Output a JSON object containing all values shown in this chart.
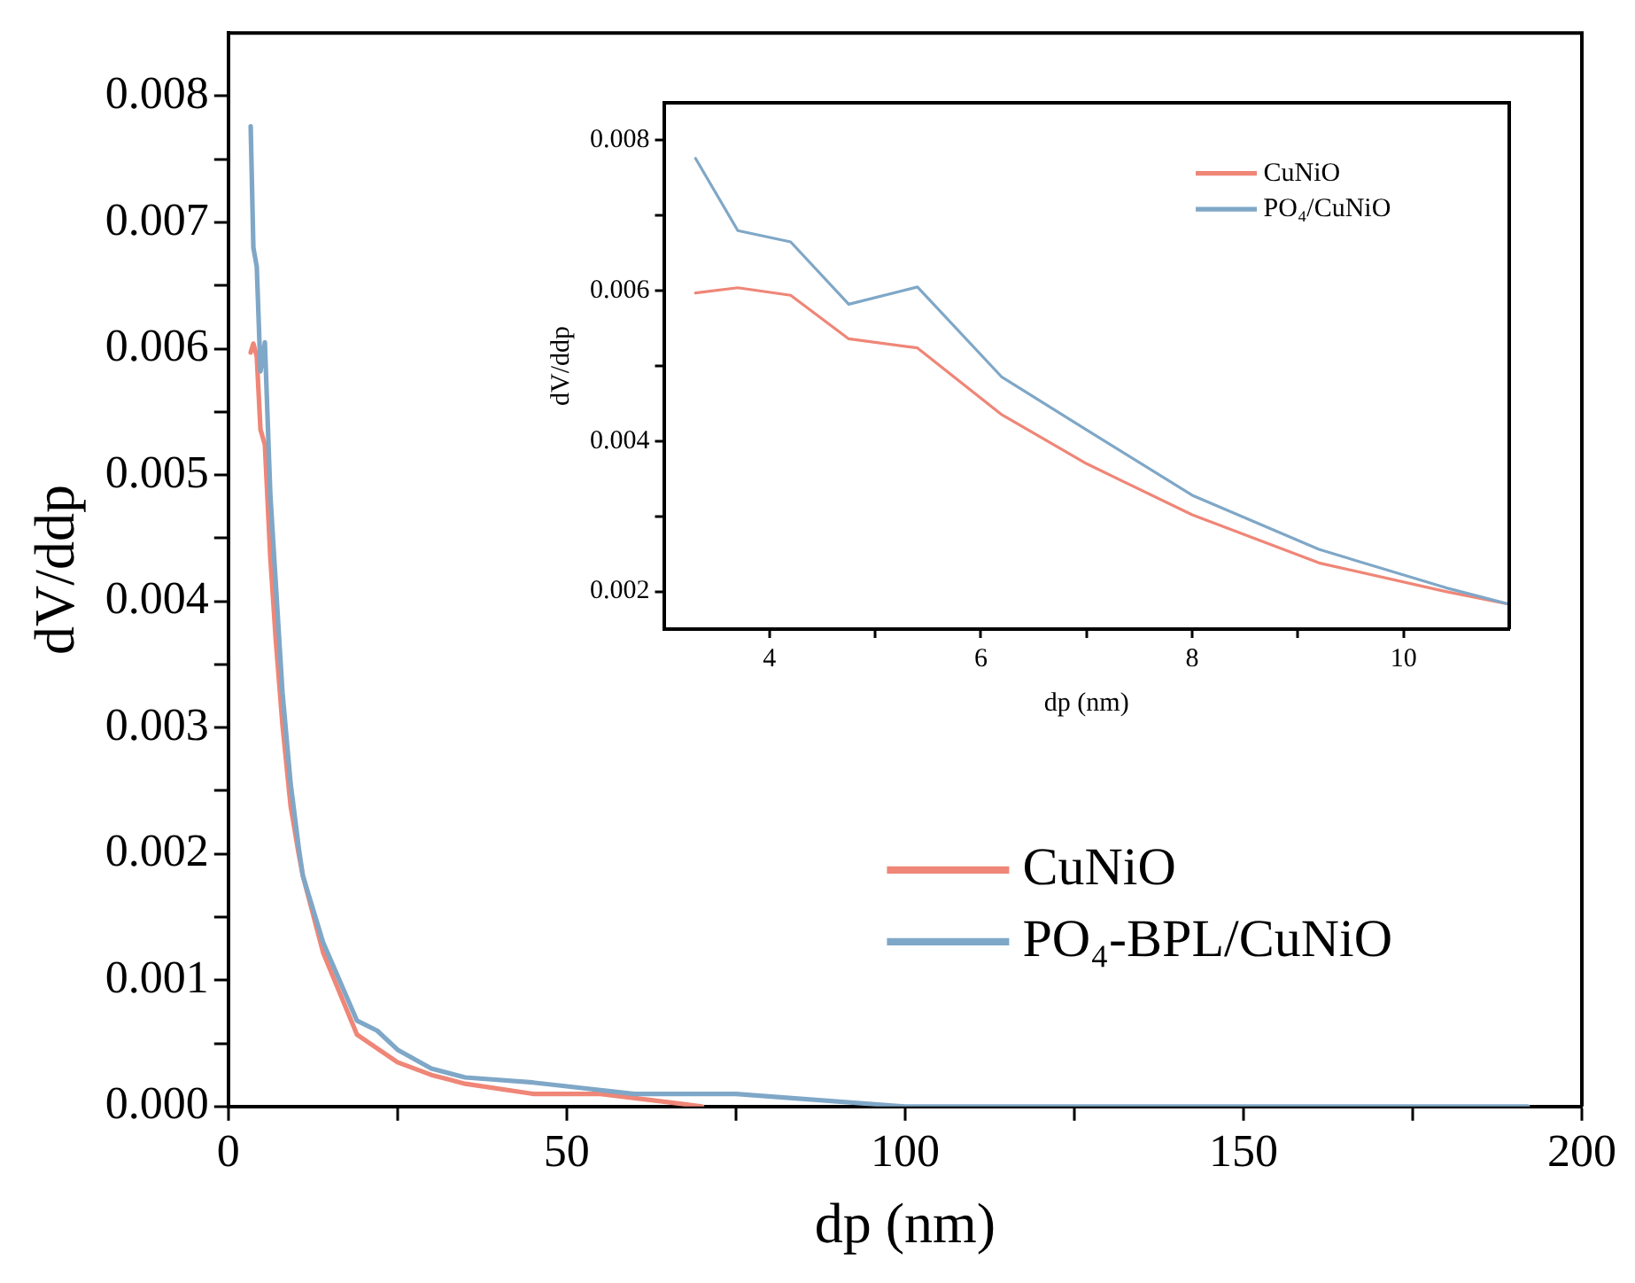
{
  "chart_data": [
    {
      "type": "line",
      "xlabel": "dp (nm)",
      "ylabel": "dV/ddp",
      "xlim": [
        0,
        200
      ],
      "ylim": [
        0,
        0.0085
      ],
      "xticks": [
        0,
        {
          "value": 25,
          "label": null
        },
        50,
        {
          "value": 75,
          "label": null
        },
        100,
        {
          "value": 125,
          "label": null
        },
        150,
        {
          "value": 175,
          "label": null
        },
        200
      ],
      "yticks": [
        {
          "value": 0,
          "label": "0.000"
        },
        {
          "value": 0.0005,
          "label": null
        },
        0.001,
        {
          "value": 0.0015,
          "label": null
        },
        0.002,
        {
          "value": 0.0025,
          "label": null
        },
        0.003,
        {
          "value": 0.0035,
          "label": null
        },
        0.004,
        {
          "value": 0.0045,
          "label": null
        },
        0.005,
        {
          "value": 0.0055,
          "label": null
        },
        0.006,
        {
          "value": 0.0065,
          "label": null
        },
        0.007,
        {
          "value": 0.0075,
          "label": null
        },
        0.008
      ],
      "grid": false,
      "legend": "bottom right",
      "marker": "none",
      "line_style": "solid",
      "series": [
        {
          "name": "CuNiO",
          "color": "#ef8677",
          "x": [
            3.3,
            3.7,
            4.2,
            4.75,
            5.4,
            6.2,
            7,
            8,
            9.2,
            10.4,
            11,
            14,
            19,
            25,
            30,
            35,
            45,
            55,
            70
          ],
          "values": [
            0.00597,
            0.00604,
            0.00594,
            0.00536,
            0.00524,
            0.00435,
            0.0037,
            0.00302,
            0.00238,
            0.002,
            0.00183,
            0.00122,
            0.00057,
            0.00035,
            0.00025,
            0.00018,
            0.0001,
            0.0001,
            0
          ]
        },
        {
          "name": "PO₄-BPL/CuNiO",
          "color": "#7fa7c7",
          "x": [
            3.3,
            3.7,
            4.2,
            4.75,
            5.4,
            6.2,
            7,
            8,
            9.2,
            10.4,
            11,
            14,
            19,
            22,
            25,
            30,
            35,
            45,
            50,
            60,
            75,
            100,
            120,
            192
          ],
          "values": [
            0.00776,
            0.0068,
            0.00665,
            0.00582,
            0.00605,
            0.00485,
            0.00415,
            0.00328,
            0.00256,
            0.00205,
            0.00183,
            0.0013,
            0.00068,
            0.0006,
            0.00045,
            0.0003,
            0.00023,
            0.00019,
            0.00016,
            0.0001,
            0.0001,
            0,
            0,
            0
          ]
        }
      ]
    },
    {
      "type": "line",
      "xlabel": "dp (nm)",
      "ylabel": "dV/ddp",
      "xlim": [
        3,
        11
      ],
      "ylim": [
        0.0015,
        0.0085
      ],
      "xticks": [
        4,
        {
          "value": 5,
          "label": null
        },
        6,
        {
          "value": 7,
          "label": null
        },
        8,
        {
          "value": 9,
          "label": null
        },
        10
      ],
      "yticks": [
        0.002,
        {
          "value": 0.003,
          "label": null
        },
        0.004,
        {
          "value": 0.005,
          "label": null
        },
        0.006,
        {
          "value": 0.007,
          "label": null
        },
        0.008
      ],
      "grid": false,
      "legend": "top right",
      "marker": "none",
      "line_style": "solid",
      "series": [
        {
          "name": "CuNiO",
          "color": "#ef8677",
          "x": [
            3.3,
            3.7,
            4.2,
            4.75,
            5.4,
            6.2,
            7,
            8,
            9.2,
            10.4,
            11
          ],
          "values": [
            0.00597,
            0.00604,
            0.00594,
            0.00536,
            0.00524,
            0.00435,
            0.0037,
            0.00302,
            0.00238,
            0.002,
            0.00183
          ]
        },
        {
          "name": "PO₄/CuNiO",
          "color": "#7fa7c7",
          "x": [
            3.3,
            3.7,
            4.2,
            4.75,
            5.4,
            6.2,
            7,
            8,
            9.2,
            10.4,
            11
          ],
          "values": [
            0.00776,
            0.0068,
            0.00665,
            0.00582,
            0.00605,
            0.00485,
            0.00415,
            0.00328,
            0.00256,
            0.00205,
            0.00183
          ]
        }
      ]
    }
  ]
}
